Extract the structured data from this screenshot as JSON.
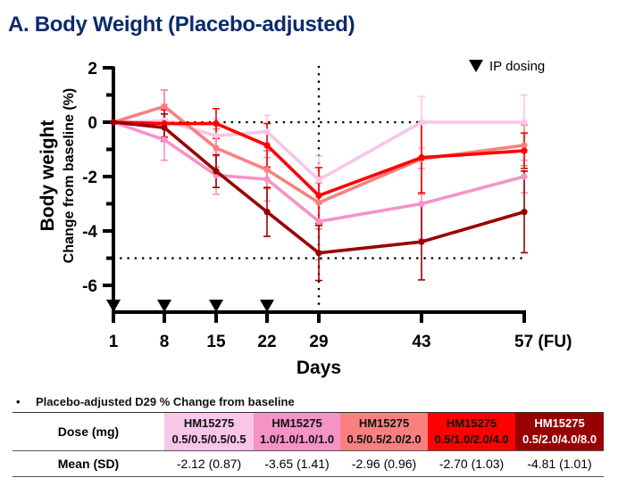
{
  "title": "A. Body Weight  (Placebo-adjusted)",
  "chart_data": {
    "type": "line",
    "title": "A. Body Weight  (Placebo-adjusted)",
    "xlabel": "Days",
    "ylabel": "Body weight",
    "ylabel_sub": "Change from baseline  (%)",
    "x": [
      1,
      8,
      15,
      22,
      29,
      43,
      57
    ],
    "x_tick_labels": [
      "1",
      "8",
      "15",
      "22",
      "29",
      "43",
      "57 (FU)"
    ],
    "y_ticks": [
      2,
      0,
      -2,
      -4,
      -6
    ],
    "y_tick_labels": [
      "2",
      "0",
      "-2",
      "-4",
      "-6"
    ],
    "ylim": [
      -7,
      2
    ],
    "grid": false,
    "reference_lines": {
      "horizontal": [
        0,
        -5
      ],
      "vertical": [
        29
      ],
      "style": "dotted"
    },
    "dosing_days": [
      1,
      8,
      15,
      22
    ],
    "legend": {
      "label": "IP dosing",
      "symbol": "down-triangle",
      "placement": "top-right"
    },
    "series": [
      {
        "name": "HM15275 0.5/0.5/0.5/0.5",
        "color": "#f7c6e8",
        "values": [
          0,
          0.05,
          -0.5,
          -0.35,
          -2.12,
          0.0,
          0.0
        ],
        "errors": [
          0,
          0.6,
          0.6,
          0.6,
          0.87,
          0.95,
          1.0
        ]
      },
      {
        "name": "HM15275 1.0/1.0/1.0/1.0",
        "color": "#f593c6",
        "values": [
          0,
          -0.65,
          -1.95,
          -2.1,
          -3.65,
          -3.0,
          -2.0
        ],
        "errors": [
          0,
          0.75,
          0.7,
          0.8,
          1.41,
          1.3,
          0.6
        ]
      },
      {
        "name": "HM15275 0.5/0.5/2.0/2.0",
        "color": "#fa8080",
        "values": [
          0,
          0.58,
          -0.95,
          -1.75,
          -2.96,
          -1.35,
          -0.85
        ],
        "errors": [
          0,
          0.6,
          0.7,
          0.7,
          0.96,
          1.3,
          0.75
        ]
      },
      {
        "name": "HM15275 0.5/1.0/2.0/4.0",
        "color": "#ff0000",
        "values": [
          0,
          -0.05,
          -0.05,
          -0.85,
          -2.7,
          -1.3,
          -1.05
        ],
        "errors": [
          0,
          0.5,
          0.55,
          0.8,
          1.03,
          1.3,
          0.65
        ]
      },
      {
        "name": "HM15275 0.5/2.0/4.0/8.0",
        "color": "#990000",
        "values": [
          0,
          -0.2,
          -1.8,
          -3.3,
          -4.81,
          -4.4,
          -3.3
        ],
        "errors": [
          0,
          0.5,
          0.6,
          0.9,
          1.01,
          1.4,
          1.5
        ]
      }
    ]
  },
  "summary": {
    "note": "Placebo-adjusted D29 % Change from baseline",
    "bullet": "•",
    "row_headers": [
      "Dose (mg)",
      "Mean (SD)"
    ],
    "columns": [
      {
        "drug": "HM15275",
        "dose": "0.5/0.5/0.5/0.5",
        "mean_sd": "-2.12 (0.87)",
        "bg": "#f7c6e8",
        "fg": "#111111"
      },
      {
        "drug": "HM15275",
        "dose": "1.0/1.0/1.0/1.0",
        "mean_sd": "-3.65 (1.41)",
        "bg": "#f593c6",
        "fg": "#111111"
      },
      {
        "drug": "HM15275",
        "dose": "0.5/0.5/2.0/2.0",
        "mean_sd": "-2.96 (0.96)",
        "bg": "#fa8080",
        "fg": "#111111"
      },
      {
        "drug": "HM15275",
        "dose": "0.5/1.0/2.0/4.0",
        "mean_sd": "-2.70 (1.03)",
        "bg": "#ff0000",
        "fg": "#111111"
      },
      {
        "drug": "HM15275",
        "dose": "0.5/2.0/4.0/8.0",
        "mean_sd": "-4.81 (1.01)",
        "bg": "#990000",
        "fg": "#ffffff"
      }
    ]
  }
}
